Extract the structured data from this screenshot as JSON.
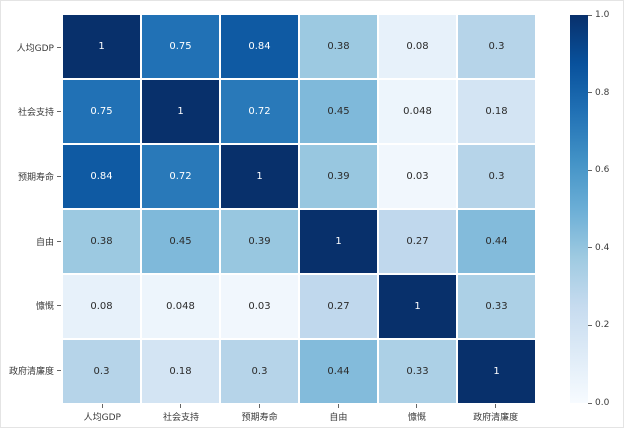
{
  "figure": {
    "background": "#ffffff",
    "border_color": "#e4e4e4"
  },
  "chart_data": {
    "type": "heatmap",
    "title": "",
    "xlabel": "",
    "ylabel": "",
    "categories": [
      "人均GDP",
      "社会支持",
      "预期寿命",
      "自由",
      "慷慨",
      "政府清廉度"
    ],
    "matrix": [
      [
        1,
        0.75,
        0.84,
        0.38,
        0.08,
        0.3
      ],
      [
        0.75,
        1,
        0.72,
        0.45,
        0.048,
        0.18
      ],
      [
        0.84,
        0.72,
        1,
        0.39,
        0.03,
        0.3
      ],
      [
        0.38,
        0.45,
        0.39,
        1,
        0.27,
        0.44
      ],
      [
        0.08,
        0.048,
        0.03,
        0.27,
        1,
        0.33
      ],
      [
        0.3,
        0.18,
        0.3,
        0.44,
        0.33,
        1
      ]
    ],
    "annotations": [
      [
        "1",
        "0.75",
        "0.84",
        "0.38",
        "0.08",
        "0.3"
      ],
      [
        "0.75",
        "1",
        "0.72",
        "0.45",
        "0.048",
        "0.18"
      ],
      [
        "0.84",
        "0.72",
        "1",
        "0.39",
        "0.03",
        "0.3"
      ],
      [
        "0.38",
        "0.45",
        "0.39",
        "1",
        "0.27",
        "0.44"
      ],
      [
        "0.08",
        "0.048",
        "0.03",
        "0.27",
        "1",
        "0.33"
      ],
      [
        "0.3",
        "0.18",
        "0.3",
        "0.44",
        "0.33",
        "1"
      ]
    ],
    "vmin": 0.0,
    "vmax": 1.0,
    "colormap": "Blues",
    "colormap_stops": [
      "#f7fbff",
      "#deebf7",
      "#c6dbef",
      "#9ecae1",
      "#6baed6",
      "#4292c6",
      "#2171b5",
      "#08519c",
      "#08306b"
    ],
    "grid_line_color": "#ffffff",
    "legend_position": "right",
    "colorbar_ticks": [
      "1.0",
      "0.8",
      "0.6",
      "0.4",
      "0.2",
      "0.0"
    ],
    "colors": {
      "annotation_light": "#ffffff",
      "annotation_dark": "#2b2b2b",
      "tick_label": "#3a3a3a"
    }
  }
}
